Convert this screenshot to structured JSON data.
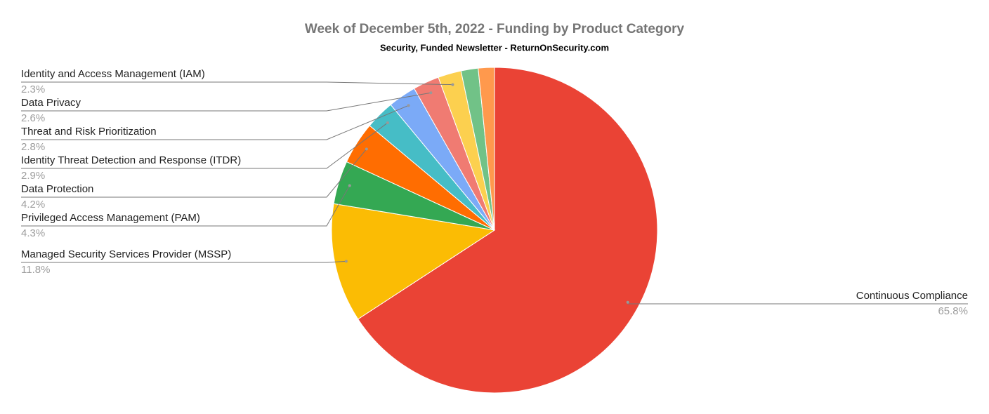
{
  "chart_data": {
    "type": "pie",
    "title": "Week of December 5th, 2022 - Funding by Product Category",
    "subtitle": "Security, Funded Newsletter - ReturnOnSecurity.com",
    "categories": [
      "Continuous Compliance",
      "Managed Security Services Provider (MSSP)",
      "Privileged Access Management (PAM)",
      "Data Protection",
      "Identity Threat Detection and Response (ITDR)",
      "Threat and Risk Prioritization",
      "Data Privacy",
      "Identity and Access Management (IAM)",
      null,
      null
    ],
    "values": [
      65.8,
      11.8,
      4.3,
      4.2,
      2.9,
      2.8,
      2.6,
      2.3,
      1.7,
      1.6
    ],
    "value_labels": [
      "65.8%",
      "11.8%",
      "4.3%",
      "4.2%",
      "2.9%",
      "2.8%",
      "2.6%",
      "2.3%",
      null,
      null
    ],
    "colors": [
      "#ea4335",
      "#fbbc04",
      "#34a853",
      "#ff6d01",
      "#46bdc6",
      "#7baaf7",
      "#f07b72",
      "#fcd04f",
      "#71c287",
      "#ff994d"
    ]
  }
}
